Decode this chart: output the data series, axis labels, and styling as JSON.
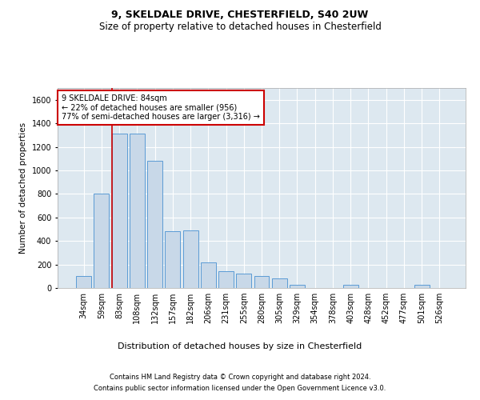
{
  "title1": "9, SKELDALE DRIVE, CHESTERFIELD, S40 2UW",
  "title2": "Size of property relative to detached houses in Chesterfield",
  "xlabel": "Distribution of detached houses by size in Chesterfield",
  "ylabel": "Number of detached properties",
  "categories": [
    "34sqm",
    "59sqm",
    "83sqm",
    "108sqm",
    "132sqm",
    "157sqm",
    "182sqm",
    "206sqm",
    "231sqm",
    "255sqm",
    "280sqm",
    "305sqm",
    "329sqm",
    "354sqm",
    "378sqm",
    "403sqm",
    "428sqm",
    "452sqm",
    "477sqm",
    "501sqm",
    "526sqm"
  ],
  "values": [
    100,
    800,
    1310,
    1310,
    1080,
    480,
    490,
    220,
    140,
    120,
    100,
    80,
    30,
    0,
    0,
    30,
    0,
    0,
    0,
    30,
    0
  ],
  "bar_color": "#c8d8e8",
  "bar_edge_color": "#5b9bd5",
  "vline_index": 1.575,
  "annotation_text_line1": "9 SKELDALE DRIVE: 84sqm",
  "annotation_text_line2": "← 22% of detached houses are smaller (956)",
  "annotation_text_line3": "77% of semi-detached houses are larger (3,316) →",
  "annotation_box_color": "#ffffff",
  "annotation_box_edge": "#cc0000",
  "vline_color": "#cc0000",
  "footer1": "Contains HM Land Registry data © Crown copyright and database right 2024.",
  "footer2": "Contains public sector information licensed under the Open Government Licence v3.0.",
  "ylim": [
    0,
    1700
  ],
  "yticks": [
    0,
    200,
    400,
    600,
    800,
    1000,
    1200,
    1400,
    1600
  ],
  "bg_color": "#dde8f0",
  "fig_bg_color": "#ffffff",
  "title1_fontsize": 9,
  "title2_fontsize": 8.5,
  "ylabel_fontsize": 7.5,
  "xlabel_fontsize": 8,
  "tick_fontsize": 7,
  "footer_fontsize": 6,
  "annotation_fontsize": 7
}
